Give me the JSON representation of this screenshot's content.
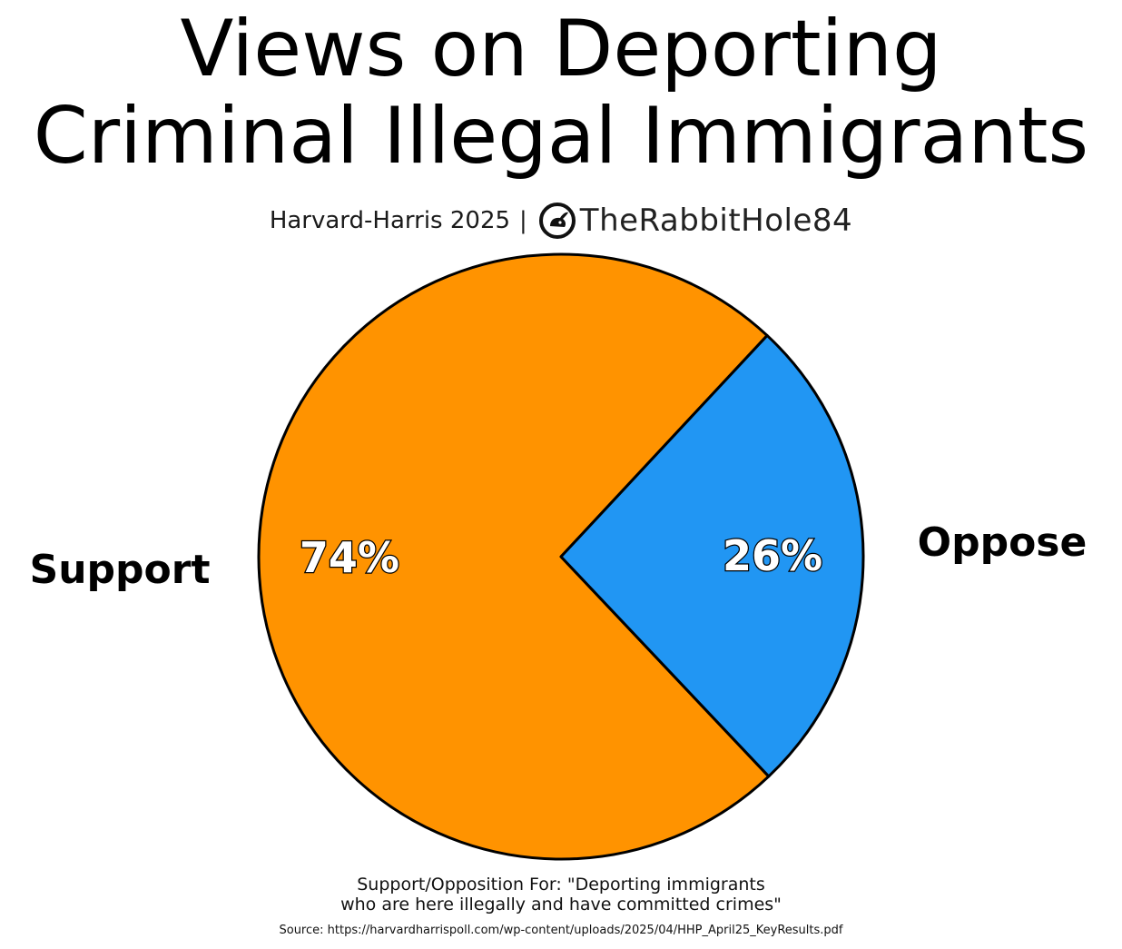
{
  "title_lines": [
    "Views on Deporting",
    "Criminal Illegal Immigrants"
  ],
  "subtitle": {
    "source": "Harvard-Harris 2025",
    "separator": "|",
    "brand": "TheRabbitHole84",
    "brand_icon": "rabbit-icon"
  },
  "chart_data": {
    "type": "pie",
    "title": "Views on Deporting Criminal Illegal Immigrants",
    "labels": [
      "Support",
      "Oppose"
    ],
    "values": [
      74,
      26
    ],
    "value_labels": [
      "74%",
      "26%"
    ],
    "colors": [
      "#FF9300",
      "#2196F3"
    ],
    "edge_color": "#000000",
    "start_angle_deg": 47,
    "direction": "counterclockwise"
  },
  "caption_lines": [
    "Support/Opposition For: \"Deporting immigrants",
    "who are here illegally and have committed crimes\""
  ],
  "source_line": "Source: https://harvardharrispoll.com/wp-content/uploads/2025/04/HHP_April25_KeyResults.pdf"
}
